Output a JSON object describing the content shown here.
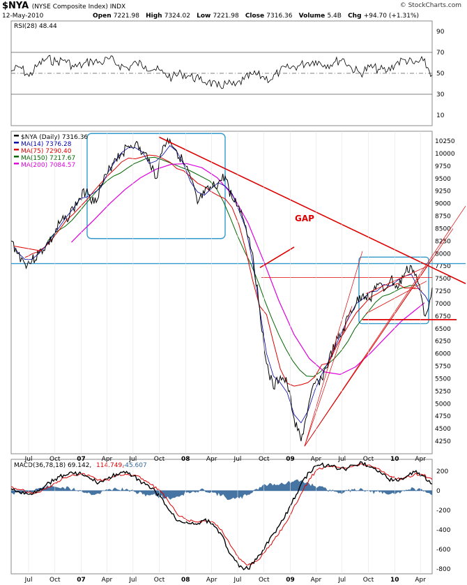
{
  "header": {
    "symbol": "$NYA",
    "name": "(NYSE Composite Index) INDX",
    "date": "12-May-2010",
    "open_label": "Open",
    "open": "7221.98",
    "high_label": "High",
    "high": "7324.02",
    "low_label": "Low",
    "low": "7221.98",
    "close_label": "Close",
    "close": "7316.36",
    "volume_label": "Volume",
    "volume": "5.4B",
    "chg_label": "Chg",
    "chg": "+94.70 (+1.31%)",
    "brand": "© StockCharts.com"
  },
  "colors": {
    "price": "#000000",
    "ma14": "#0000aa",
    "ma75": "#dd0000",
    "ma150": "#006600",
    "ma200": "#dd00dd",
    "trend": "#dd0000",
    "box": "#3399cc",
    "support": "#3399cc",
    "macd_line": "#000000",
    "signal_line": "#dd0000",
    "histogram": "#336699"
  },
  "chart_data": [
    {
      "type": "line",
      "panel": "rsi",
      "legend": "RSI(28) 48.44",
      "y_ticks": [
        90,
        70,
        50,
        30,
        10
      ],
      "ylim": [
        0,
        100
      ],
      "reference_lines": [
        70,
        50,
        30
      ],
      "series": [
        {
          "name": "RSI(28)",
          "start": "2006-05-01",
          "end": "2010-05-12",
          "values": [
            52,
            56,
            47,
            58,
            64,
            61,
            63,
            56,
            58,
            62,
            60,
            64,
            58,
            55,
            60,
            57,
            54,
            50,
            46,
            50,
            47,
            44,
            42,
            37,
            40,
            38,
            44,
            49,
            47,
            44,
            52,
            55,
            57,
            60,
            62,
            58,
            60,
            64,
            55,
            50,
            56,
            54,
            52,
            60,
            63,
            59,
            62,
            48.44
          ]
        }
      ]
    },
    {
      "type": "line",
      "panel": "price",
      "title": "$NYA (Daily)",
      "legend": [
        {
          "text": "$NYA (Daily) 7316.36",
          "color": "#000000"
        },
        {
          "text": "MA(14) 7376.28",
          "color": "#0000aa"
        },
        {
          "text": "MA(75) 7290.40",
          "color": "#dd0000"
        },
        {
          "text": "MA(150) 7217.67",
          "color": "#006600"
        },
        {
          "text": "MA(200) 7084.57",
          "color": "#dd00dd"
        }
      ],
      "y_ticks": [
        10250,
        10000,
        9750,
        9500,
        9250,
        9000,
        8750,
        8500,
        8250,
        8000,
        7750,
        7500,
        7250,
        7000,
        6750,
        6500,
        6250,
        6000,
        5750,
        5500,
        5250,
        5000,
        4750,
        4500,
        4250
      ],
      "x_labels": [
        "Jul",
        "Oct",
        "07",
        "Apr",
        "Jul",
        "Oct",
        "08",
        "Apr",
        "Jul",
        "Oct",
        "09",
        "Apr",
        "Jul",
        "Oct",
        "10",
        "Apr"
      ],
      "annotations": {
        "gap_label": "GAP"
      },
      "series": [
        {
          "name": "$NYA (Daily)",
          "start": "2006-05-01",
          "end": "2010-05-12",
          "values": [
            8250,
            8000,
            7800,
            7850,
            8000,
            8150,
            8300,
            8600,
            8700,
            8900,
            9100,
            9300,
            9000,
            9350,
            9600,
            9900,
            10000,
            10150,
            10200,
            10000,
            9900,
            9500,
            10150,
            10280,
            10050,
            9800,
            9500,
            9000,
            9200,
            9300,
            9400,
            9550,
            9100,
            8950,
            8550,
            8000,
            6900,
            5800,
            5300,
            5550,
            5400,
            4700,
            4250,
            4900,
            5400,
            5500,
            5850,
            6200,
            6400,
            6800,
            7000,
            7200,
            7100,
            7400,
            7250,
            7500,
            7300,
            7600,
            7750,
            7400,
            6750,
            7316.36
          ]
        },
        {
          "name": "MA(200)",
          "start": "2006-11-01",
          "end": "2010-05-12",
          "values": [
            8100,
            8350,
            8700,
            9000,
            9300,
            9550,
            9700,
            9800,
            9850,
            9750,
            9550,
            9250,
            8700,
            7900,
            7000,
            6300,
            5850,
            5550,
            5500,
            5700,
            6000,
            6350,
            6650,
            6950,
            7084.57
          ]
        }
      ]
    },
    {
      "type": "line",
      "panel": "macd",
      "legend": [
        {
          "text": "MACD(36,78,18) 69.142,",
          "color": "#000000"
        },
        {
          "text": "114.749,",
          "color": "#dd0000"
        },
        {
          "text": "-45.607",
          "color": "#336699"
        }
      ],
      "y_ticks": [
        200,
        0,
        -200,
        -400,
        -600,
        -800
      ],
      "ylim": [
        -850,
        320
      ],
      "series": [
        {
          "name": "MACD(36,78,18)",
          "start": "2006-05-01",
          "end": "2010-05-12",
          "values": [
            20,
            -20,
            -40,
            0,
            60,
            120,
            160,
            180,
            170,
            120,
            80,
            120,
            170,
            180,
            150,
            80,
            20,
            -60,
            -200,
            -310,
            -320,
            -340,
            -300,
            -340,
            -450,
            -650,
            -780,
            -800,
            -700,
            -560,
            -430,
            -300,
            -130,
            60,
            190,
            260,
            260,
            240,
            220,
            260,
            290,
            240,
            200,
            120,
            100,
            140,
            190,
            150,
            69.142
          ]
        },
        {
          "name": "Signal",
          "start": "2006-05-01",
          "end": "2010-05-12",
          "values": [
            40,
            10,
            -20,
            -20,
            20,
            80,
            130,
            165,
            170,
            150,
            110,
            110,
            150,
            170,
            160,
            120,
            60,
            0,
            -120,
            -250,
            -300,
            -320,
            -310,
            -320,
            -400,
            -560,
            -700,
            -760,
            -720,
            -620,
            -500,
            -370,
            -220,
            -40,
            120,
            220,
            250,
            250,
            235,
            250,
            270,
            255,
            220,
            160,
            120,
            130,
            170,
            160,
            114.749
          ]
        },
        {
          "name": "Histogram",
          "start": "2006-05-01",
          "end": "2010-05-12",
          "values": [
            -20,
            -30,
            -20,
            20,
            40,
            40,
            30,
            15,
            0,
            -30,
            -30,
            10,
            20,
            10,
            -10,
            -40,
            -40,
            -60,
            -80,
            -60,
            -20,
            -20,
            10,
            -20,
            -50,
            -90,
            -80,
            -40,
            20,
            60,
            70,
            70,
            90,
            100,
            70,
            40,
            10,
            -10,
            -15,
            10,
            20,
            -15,
            -20,
            -40,
            -20,
            10,
            20,
            -10,
            -45.607
          ]
        }
      ]
    }
  ]
}
